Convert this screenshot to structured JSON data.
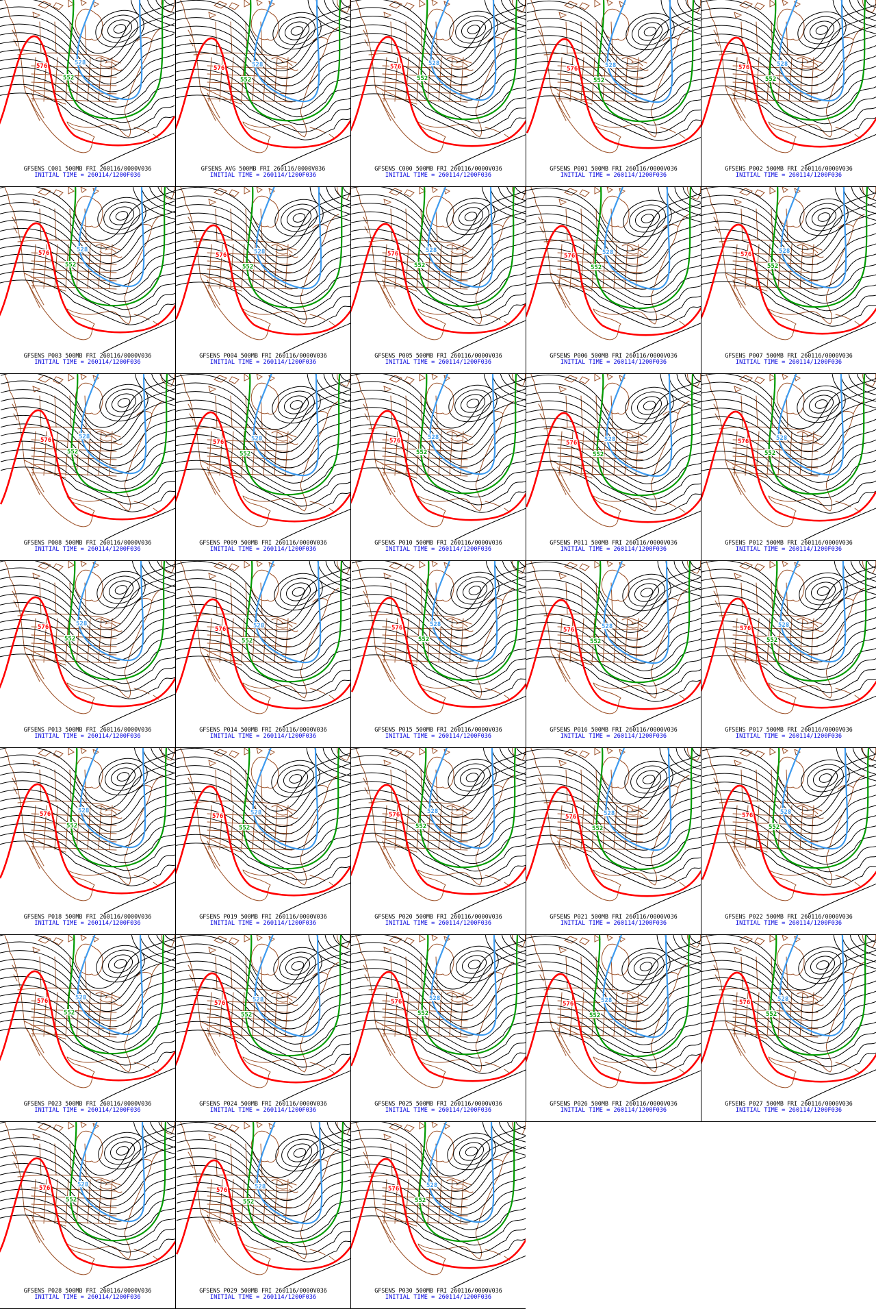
{
  "page": {
    "background": "#ffffff",
    "description_rows": 7,
    "description_cols": 5
  },
  "product": {
    "model": "GFSENS",
    "level": "500MB",
    "valid_label": "FRI 260116/0000V036",
    "initial_time": "INITIAL TIME = 260114/1200F036"
  },
  "map_style": {
    "contour_color": "#000000",
    "geography_color": "#9c5128",
    "highlight_contours": [
      {
        "label": "576",
        "color": "#ff0000"
      },
      {
        "label": "552",
        "color": "#009b00"
      },
      {
        "label": "528",
        "color": "#3e9bef"
      }
    ],
    "title_color": "#000000",
    "initial_time_color": "#0000dd"
  },
  "panels": [
    {
      "member": "C001",
      "title": "GFSENS C001 500MB FRI 260116/0000V036",
      "initial_time": "INITIAL TIME = 260114/1200F036"
    },
    {
      "member": "AVG",
      "title": "GFSENS AVG 500MB FRI 260116/0000V036",
      "initial_time": "INITIAL TIME = 260114/1200F036"
    },
    {
      "member": "C000",
      "title": "GFSENS C000 500MB FRI 260116/0000V036",
      "initial_time": "INITIAL TIME = 260114/1200F036"
    },
    {
      "member": "P001",
      "title": "GFSENS P001 500MB FRI 260116/0000V036",
      "initial_time": "INITIAL TIME = 260114/1200F036"
    },
    {
      "member": "P002",
      "title": "GFSENS P002 500MB FRI 260116/0000V036",
      "initial_time": "INITIAL TIME = 260114/1200F036"
    },
    {
      "member": "P003",
      "title": "GFSENS P003 500MB FRI 260116/0000V036",
      "initial_time": "INITIAL TIME = 260114/1200F036"
    },
    {
      "member": "P004",
      "title": "GFSENS P004 500MB FRI 260116/0000V036",
      "initial_time": "INITIAL TIME = 260114/1200F036"
    },
    {
      "member": "P005",
      "title": "GFSENS P005 500MB FRI 260116/0000V036",
      "initial_time": "INITIAL TIME = 260114/1200F036"
    },
    {
      "member": "P006",
      "title": "GFSENS P006 500MB FRI 260116/0000V036",
      "initial_time": "INITIAL TIME = 260114/1200F036"
    },
    {
      "member": "P007",
      "title": "GFSENS P007 500MB FRI 260116/0000V036",
      "initial_time": "INITIAL TIME = 260114/1200F036"
    },
    {
      "member": "P008",
      "title": "GFSENS P008 500MB FRI 260116/0000V036",
      "initial_time": "INITIAL TIME = 260114/1200F036"
    },
    {
      "member": "P009",
      "title": "GFSENS P009 500MB FRI 260116/0000V036",
      "initial_time": "INITIAL TIME = 260114/1200F036"
    },
    {
      "member": "P010",
      "title": "GFSENS P010 500MB FRI 260116/0000V036",
      "initial_time": "INITIAL TIME = 260114/1200F036"
    },
    {
      "member": "P011",
      "title": "GFSENS P011 500MB FRI 260116/0000V036",
      "initial_time": "INITIAL TIME = 260114/1200F036"
    },
    {
      "member": "P012",
      "title": "GFSENS P012 500MB FRI 260116/0000V036",
      "initial_time": "INITIAL TIME = 260114/1200F036"
    },
    {
      "member": "P013",
      "title": "GFSENS P013 500MB FRI 260116/0000V036",
      "initial_time": "INITIAL TIME = 260114/1200F036"
    },
    {
      "member": "P014",
      "title": "GFSENS P014 500MB FRI 260116/0000V036",
      "initial_time": "INITIAL TIME = 260114/1200F036"
    },
    {
      "member": "P015",
      "title": "GFSENS P015 500MB FRI 260116/0000V036",
      "initial_time": "INITIAL TIME = 260114/1200F036"
    },
    {
      "member": "P016",
      "title": "GFSENS P016 500MB FRI 260116/0000V036",
      "initial_time": "INITIAL TIME = 260114/1200F036"
    },
    {
      "member": "P017",
      "title": "GFSENS P017 500MB FRI 260116/0000V036",
      "initial_time": "INITIAL TIME = 260114/1200F036"
    },
    {
      "member": "P018",
      "title": "GFSENS P018 500MB FRI 260116/0000V036",
      "initial_time": "INITIAL TIME = 260114/1200F036"
    },
    {
      "member": "P019",
      "title": "GFSENS P019 500MB FRI 260116/0000V036",
      "initial_time": "INITIAL TIME = 260114/1200F036"
    },
    {
      "member": "P020",
      "title": "GFSENS P020 500MB FRI 260116/0000V036",
      "initial_time": "INITIAL TIME = 260114/1200F036"
    },
    {
      "member": "P021",
      "title": "GFSENS P021 500MB FRI 260116/0000V036",
      "initial_time": "INITIAL TIME = 260114/1200F036"
    },
    {
      "member": "P022",
      "title": "GFSENS P022 500MB FRI 260116/0000V036",
      "initial_time": "INITIAL TIME = 260114/1200F036"
    },
    {
      "member": "P023",
      "title": "GFSENS P023 500MB FRI 260116/0000V036",
      "initial_time": "INITIAL TIME = 260114/1200F036"
    },
    {
      "member": "P024",
      "title": "GFSENS P024 500MB FRI 260116/0000V036",
      "initial_time": "INITIAL TIME = 260114/1200F036"
    },
    {
      "member": "P025",
      "title": "GFSENS P025 500MB FRI 260116/0000V036",
      "initial_time": "INITIAL TIME = 260114/1200F036"
    },
    {
      "member": "P026",
      "title": "GFSENS P026 500MB FRI 260116/0000V036",
      "initial_time": "INITIAL TIME = 260114/1200F036"
    },
    {
      "member": "P027",
      "title": "GFSENS P027 500MB FRI 260116/0000V036",
      "initial_time": "INITIAL TIME = 260114/1200F036"
    },
    {
      "member": "P028",
      "title": "GFSENS P028 500MB FRI 260116/0000V036",
      "initial_time": "INITIAL TIME = 260114/1200F036"
    },
    {
      "member": "P029",
      "title": "GFSENS P029 500MB FRI 260116/0000V036",
      "initial_time": "INITIAL TIME = 260114/1200F036"
    },
    {
      "member": "P030",
      "title": "GFSENS P030 500MB FRI 260116/0000V036",
      "initial_time": "INITIAL TIME = 260114/1200F036"
    }
  ]
}
